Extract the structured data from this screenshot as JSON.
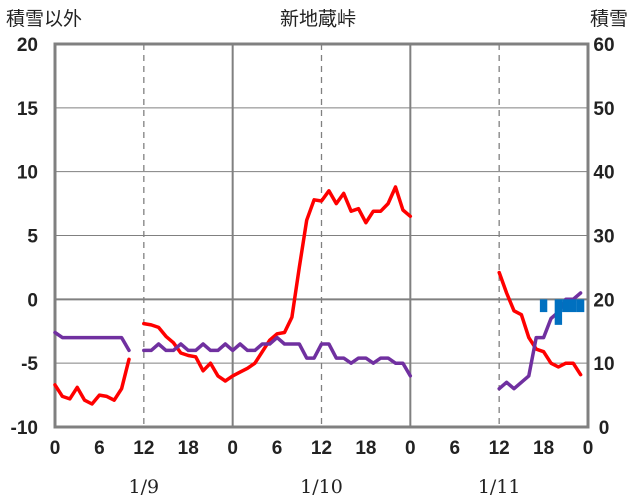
{
  "chart_data": {
    "type": "line",
    "title": "新地蔵峠",
    "ylabel_left": "積雪以外",
    "ylabel_right": "積雪",
    "ylim_left": [
      -10,
      20
    ],
    "ylim_right": [
      0,
      60
    ],
    "yticks_left": [
      "20",
      "15",
      "10",
      "5",
      "0",
      "-5",
      "-10"
    ],
    "yticks_right": [
      "60",
      "50",
      "40",
      "30",
      "20",
      "10",
      "0"
    ],
    "x_range_hours": [
      0,
      72
    ],
    "xticks": [
      "0",
      "6",
      "12",
      "18",
      "0",
      "6",
      "12",
      "18",
      "0",
      "6",
      "12",
      "18",
      "0"
    ],
    "date_labels": [
      {
        "hour": 12,
        "label": "1/9"
      },
      {
        "hour": 36,
        "label": "1/10"
      },
      {
        "hour": 60,
        "label": "1/11"
      }
    ],
    "grid": true,
    "colors": {
      "red": "#ff0000",
      "purple": "#7030a0",
      "blue": "#0070c0",
      "grid": "#808080",
      "zero": "#808080"
    },
    "series": [
      {
        "axis": "left",
        "color": "#ff0000",
        "segments": [
          [
            [
              0,
              -6.7
            ],
            [
              1,
              -7.6
            ],
            [
              2,
              -7.8
            ],
            [
              3,
              -6.9
            ],
            [
              4,
              -7.9
            ],
            [
              5,
              -8.2
            ],
            [
              6,
              -7.5
            ],
            [
              7,
              -7.6
            ],
            [
              8,
              -7.9
            ],
            [
              9,
              -7.0
            ],
            [
              10,
              -4.7
            ]
          ],
          [
            [
              12,
              -1.9
            ],
            [
              13,
              -2.0
            ],
            [
              14,
              -2.2
            ],
            [
              15,
              -2.9
            ],
            [
              16,
              -3.4
            ],
            [
              17,
              -4.2
            ],
            [
              18,
              -4.4
            ],
            [
              19,
              -4.5
            ],
            [
              20,
              -5.6
            ],
            [
              21,
              -5.0
            ],
            [
              22,
              -6.0
            ],
            [
              23,
              -6.4
            ],
            [
              24,
              -6.0
            ],
            [
              25,
              -5.7
            ],
            [
              26,
              -5.4
            ],
            [
              27,
              -5.0
            ],
            [
              28,
              -4.1
            ],
            [
              29,
              -3.2
            ],
            [
              30,
              -2.7
            ],
            [
              31,
              -2.6
            ],
            [
              32,
              -1.4
            ],
            [
              33,
              2.5
            ],
            [
              34,
              6.2
            ],
            [
              35,
              7.8
            ],
            [
              36,
              7.7
            ],
            [
              37,
              8.5
            ],
            [
              38,
              7.5
            ],
            [
              39,
              8.3
            ],
            [
              40,
              6.9
            ],
            [
              41,
              7.1
            ],
            [
              42,
              6.0
            ],
            [
              43,
              6.9
            ],
            [
              44,
              6.9
            ],
            [
              45,
              7.5
            ],
            [
              46,
              8.8
            ],
            [
              47,
              7.0
            ],
            [
              48,
              6.5
            ]
          ],
          [
            [
              60,
              2.1
            ],
            [
              61,
              0.5
            ],
            [
              62,
              -0.9
            ],
            [
              63,
              -1.2
            ],
            [
              64,
              -3.0
            ],
            [
              65,
              -3.9
            ],
            [
              66,
              -4.1
            ],
            [
              67,
              -5.0
            ],
            [
              68,
              -5.3
            ],
            [
              69,
              -5.0
            ],
            [
              70,
              -5.0
            ],
            [
              71,
              -5.9
            ]
          ]
        ]
      },
      {
        "axis": "left",
        "color": "#7030a0",
        "segments": [
          [
            [
              0,
              -2.6
            ],
            [
              1,
              -3.0
            ],
            [
              2,
              -3.0
            ],
            [
              3,
              -3.0
            ],
            [
              4,
              -3.0
            ],
            [
              5,
              -3.0
            ],
            [
              6,
              -3.0
            ],
            [
              7,
              -3.0
            ],
            [
              8,
              -3.0
            ],
            [
              9,
              -3.0
            ],
            [
              10,
              -4.0
            ]
          ],
          [
            [
              12,
              -4.0
            ],
            [
              13,
              -4.0
            ],
            [
              14,
              -3.5
            ],
            [
              15,
              -4.0
            ],
            [
              16,
              -4.0
            ],
            [
              17,
              -3.5
            ],
            [
              18,
              -4.0
            ],
            [
              19,
              -4.0
            ],
            [
              20,
              -3.5
            ],
            [
              21,
              -4.0
            ],
            [
              22,
              -4.0
            ],
            [
              23,
              -3.5
            ],
            [
              24,
              -4.0
            ],
            [
              25,
              -3.5
            ],
            [
              26,
              -4.0
            ],
            [
              27,
              -4.0
            ],
            [
              28,
              -3.5
            ],
            [
              29,
              -3.5
            ],
            [
              30,
              -3.0
            ],
            [
              31,
              -3.5
            ],
            [
              32,
              -3.5
            ],
            [
              33,
              -3.5
            ],
            [
              34,
              -4.6
            ],
            [
              35,
              -4.6
            ],
            [
              36,
              -3.5
            ],
            [
              37,
              -3.5
            ],
            [
              38,
              -4.6
            ],
            [
              39,
              -4.6
            ],
            [
              40,
              -5.0
            ],
            [
              41,
              -4.6
            ],
            [
              42,
              -4.6
            ],
            [
              43,
              -5.0
            ],
            [
              44,
              -4.6
            ],
            [
              45,
              -4.6
            ],
            [
              46,
              -5.0
            ],
            [
              47,
              -5.0
            ],
            [
              48,
              -6.0
            ]
          ],
          [
            [
              60,
              -7.0
            ],
            [
              61,
              -6.5
            ],
            [
              62,
              -7.0
            ],
            [
              63,
              -6.5
            ],
            [
              64,
              -6.0
            ],
            [
              65,
              -3.0
            ],
            [
              66,
              -3.0
            ],
            [
              67,
              -1.5
            ],
            [
              68,
              -1.0
            ],
            [
              69,
              0.0
            ],
            [
              70,
              0.0
            ],
            [
              71,
              0.5
            ]
          ]
        ]
      },
      {
        "axis": "right",
        "type": "bar",
        "color": "#0070c0",
        "base": 20,
        "bars": [
          [
            66,
            18
          ],
          [
            68,
            16
          ],
          [
            69,
            18
          ],
          [
            70,
            18
          ],
          [
            71,
            18
          ]
        ]
      }
    ]
  }
}
